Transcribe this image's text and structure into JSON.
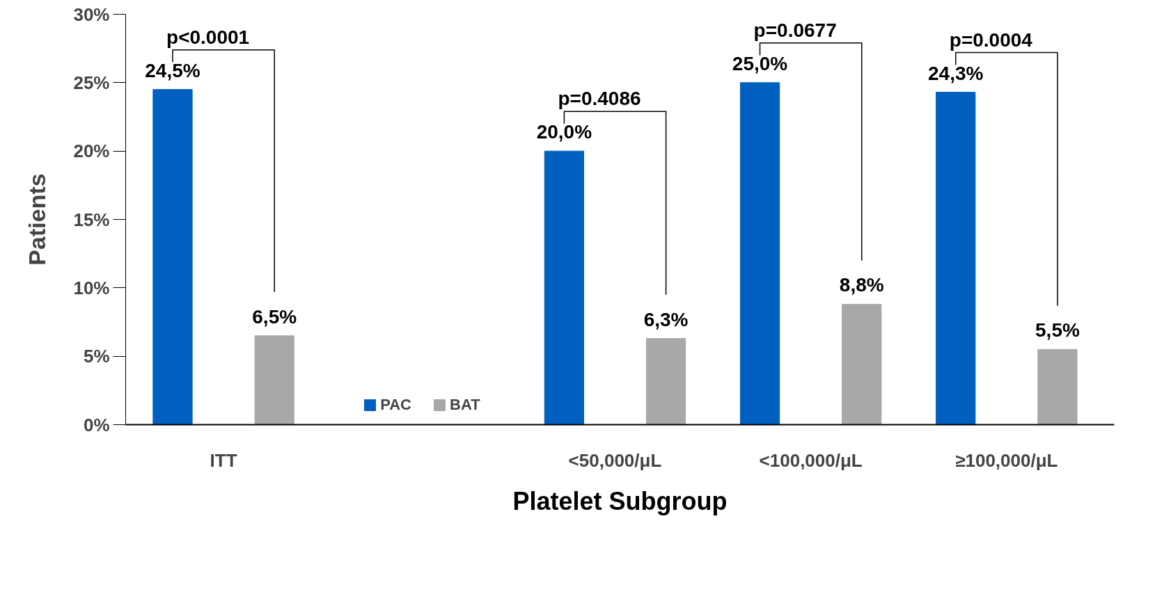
{
  "chart_data": {
    "type": "bar",
    "ylabel": "Patients",
    "xlabel": "Platelet Subgroup",
    "categories": [
      "ITT",
      null,
      "<50,000/μL",
      "<100,000/μL",
      "≥100,000/μL"
    ],
    "series": [
      {
        "name": "PAC",
        "color": "#0060c0",
        "values": [
          24.5,
          null,
          20.0,
          25.0,
          24.3
        ],
        "value_labels": [
          "24,5%",
          null,
          "20,0%",
          "25,0%",
          "24,3%"
        ]
      },
      {
        "name": "BAT",
        "color": "#a8a8a8",
        "values": [
          6.5,
          null,
          6.3,
          8.8,
          5.5
        ],
        "value_labels": [
          "6,5%",
          null,
          "6,3%",
          "8,8%",
          "5,5%"
        ]
      }
    ],
    "ylim": [
      0,
      30
    ],
    "yticks": [
      {
        "value": 0,
        "label": "0%"
      },
      {
        "value": 5,
        "label": "5%"
      },
      {
        "value": 10,
        "label": "10%"
      },
      {
        "value": 15,
        "label": "15%"
      },
      {
        "value": 20,
        "label": "20%"
      },
      {
        "value": 25,
        "label": "25%"
      },
      {
        "value": 30,
        "label": "30%"
      }
    ],
    "annotations": [
      "p<0.0001",
      "p=0.4086",
      "p=0.0677",
      "p=0.0004"
    ],
    "legend": "bottom",
    "grid": false
  }
}
